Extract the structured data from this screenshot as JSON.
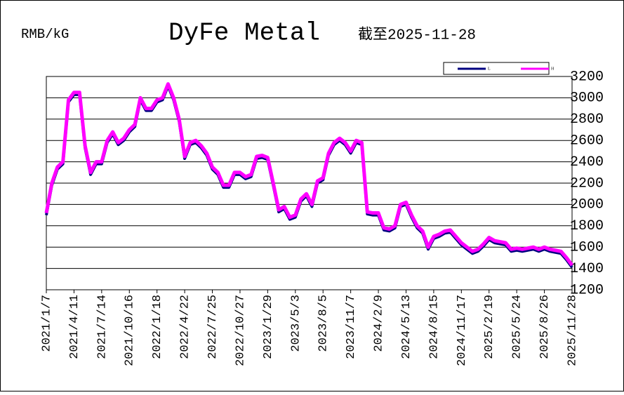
{
  "chart_data": {
    "type": "line",
    "title": "DyFe Metal",
    "subtitle": "截至2025-11-28",
    "ylabel": "RMB/kG",
    "ylim": [
      1200,
      3200
    ],
    "yticks": [
      1200,
      1400,
      1600,
      1800,
      2000,
      2200,
      2400,
      2600,
      2800,
      3000,
      3200
    ],
    "grid": true,
    "legend": "top-right",
    "categories": [
      "2021/1/7",
      null,
      null,
      null,
      null,
      "2021/4/11",
      null,
      null,
      null,
      null,
      "2021/7/14",
      null,
      null,
      null,
      null,
      "2021/10/16",
      null,
      null,
      null,
      null,
      "2022/1/18",
      null,
      null,
      null,
      null,
      "2022/4/22",
      null,
      null,
      null,
      null,
      "2022/7/25",
      null,
      null,
      null,
      null,
      "2022/10/27",
      null,
      null,
      null,
      null,
      "2023/1/29",
      null,
      null,
      null,
      null,
      "2023/5/3",
      null,
      null,
      null,
      null,
      "2023/8/5",
      null,
      null,
      null,
      null,
      "2023/11/7",
      null,
      null,
      null,
      null,
      "2024/2/9",
      null,
      null,
      null,
      null,
      "2024/5/13",
      null,
      null,
      null,
      null,
      "2024/8/15",
      null,
      null,
      null,
      null,
      "2024/11/17",
      null,
      null,
      null,
      null,
      "2025/2/19",
      null,
      null,
      null,
      null,
      "2025/5/24",
      null,
      null,
      null,
      null,
      "2025/8/26",
      null,
      null,
      null,
      null,
      "2025/11/28"
    ],
    "series": [
      {
        "name": "L",
        "color": "#000080",
        "values": [
          1900,
          2180,
          2330,
          2380,
          2960,
          3030,
          3030,
          2530,
          2280,
          2380,
          2380,
          2580,
          2660,
          2560,
          2600,
          2680,
          2730,
          2980,
          2880,
          2880,
          2960,
          2980,
          3110,
          2980,
          2780,
          2430,
          2560,
          2580,
          2530,
          2460,
          2330,
          2280,
          2160,
          2160,
          2280,
          2280,
          2240,
          2260,
          2430,
          2440,
          2420,
          2180,
          1930,
          1960,
          1860,
          1880,
          2030,
          2080,
          1980,
          2200,
          2230,
          2460,
          2560,
          2600,
          2560,
          2480,
          2580,
          2560,
          1910,
          1900,
          1900,
          1760,
          1750,
          1780,
          1980,
          2000,
          1880,
          1780,
          1730,
          1580,
          1680,
          1700,
          1730,
          1740,
          1680,
          1620,
          1580,
          1540,
          1560,
          1610,
          1670,
          1640,
          1630,
          1620,
          1560,
          1570,
          1560,
          1570,
          1580,
          1560,
          1580,
          1560,
          1550,
          1540,
          1480,
          1410
        ]
      },
      {
        "name": "H",
        "color": "#ff00ff",
        "values": [
          1920,
          2200,
          2350,
          2400,
          2980,
          3050,
          3050,
          2550,
          2300,
          2400,
          2400,
          2600,
          2680,
          2580,
          2620,
          2700,
          2750,
          3000,
          2900,
          2900,
          2980,
          3000,
          3130,
          3000,
          2800,
          2450,
          2580,
          2600,
          2550,
          2480,
          2350,
          2300,
          2180,
          2180,
          2300,
          2300,
          2260,
          2280,
          2450,
          2460,
          2440,
          2200,
          1950,
          1980,
          1880,
          1900,
          2050,
          2100,
          2000,
          2220,
          2250,
          2480,
          2580,
          2620,
          2580,
          2500,
          2600,
          2580,
          1930,
          1920,
          1920,
          1780,
          1770,
          1800,
          2000,
          2020,
          1900,
          1800,
          1750,
          1600,
          1700,
          1720,
          1750,
          1760,
          1700,
          1640,
          1600,
          1560,
          1580,
          1630,
          1690,
          1660,
          1650,
          1640,
          1580,
          1590,
          1580,
          1590,
          1600,
          1580,
          1600,
          1580,
          1570,
          1560,
          1500,
          1430
        ]
      }
    ]
  }
}
